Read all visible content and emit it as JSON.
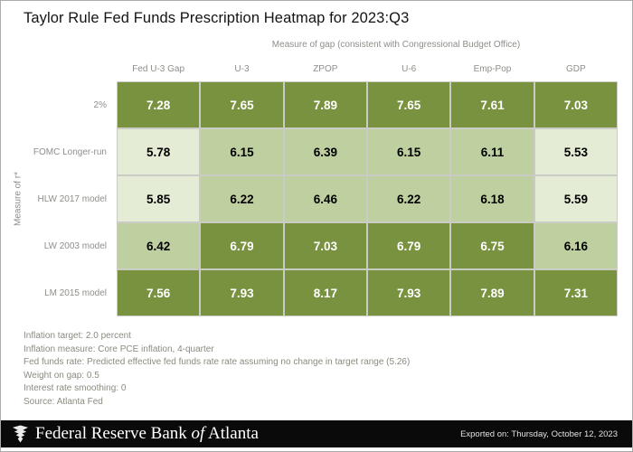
{
  "title": "Taylor Rule Fed Funds Prescription Heatmap for 2023:Q3",
  "chart_data": {
    "type": "heatmap",
    "title": "Taylor Rule Fed Funds Prescription Heatmap for 2023:Q3",
    "column_axis_label": "Measure of gap (consistent with Congressional Budget Office)",
    "row_axis_label": "Measure of r*",
    "columns": [
      "Fed U-3 Gap",
      "U-3",
      "ZPOP",
      "U-6",
      "Emp-Pop",
      "GDP"
    ],
    "rows": [
      "2%",
      "FOMC Longer-run",
      "HLW 2017 model",
      "LW 2003 model",
      "LM 2015 model"
    ],
    "values": [
      [
        7.28,
        7.65,
        7.89,
        7.65,
        7.61,
        7.03
      ],
      [
        5.78,
        6.15,
        6.39,
        6.15,
        6.11,
        5.53
      ],
      [
        5.85,
        6.22,
        6.46,
        6.22,
        6.18,
        5.59
      ],
      [
        6.42,
        6.79,
        7.03,
        6.79,
        6.75,
        6.16
      ],
      [
        7.56,
        7.93,
        8.17,
        7.93,
        7.89,
        7.31
      ]
    ],
    "value_format_decimals": 2,
    "color_scale": {
      "bins": [
        {
          "max": 6.0,
          "bg": "#e5ecd5",
          "text": "#000000"
        },
        {
          "max": 6.5,
          "bg": "#bfd0a0",
          "text": "#000000"
        },
        {
          "max": 99.0,
          "bg": "#79923f",
          "text": "#ffffff"
        }
      ]
    },
    "legend_position": "none",
    "grid": true
  },
  "footnotes": [
    "Inflation target: 2.0 percent",
    "Inflation measure: Core PCE inflation, 4-quarter",
    "Fed funds rate: Predicted effective fed funds rate rate assuming no change in target range (5.26)",
    "Weight on gap: 0.5",
    "Interest rate smoothing: 0",
    "Source: Atlanta Fed"
  ],
  "footer": {
    "brand_part1": "Federal Reserve Bank",
    "brand_of": "of",
    "brand_part2": "Atlanta",
    "exported": "Exported on: Thursday, October 12, 2023",
    "bar_color": "#0a0a0a"
  }
}
